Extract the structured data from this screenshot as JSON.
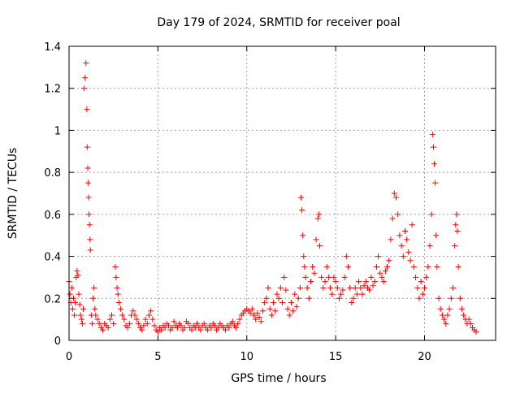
{
  "chart_data": {
    "type": "scatter",
    "title": "Day 179 of 2024, SRMTID for receiver poal",
    "xlabel": "GPS time / hours",
    "ylabel": "SRMTID / TECUs",
    "xlim": [
      0,
      24
    ],
    "ylim": [
      0,
      1.4
    ],
    "xticks": [
      0,
      5,
      10,
      15,
      20
    ],
    "xtick_labels": [
      "0",
      "5",
      "10",
      "15",
      "20"
    ],
    "yticks": [
      0,
      0.2,
      0.4,
      0.6,
      0.8,
      1.0,
      1.2,
      1.4
    ],
    "ytick_labels": [
      "0",
      "0.2",
      "0.4",
      "0.6",
      "0.8",
      "1",
      "1.2",
      "1.4"
    ],
    "grid": true,
    "marker": "+",
    "color": "#ff0000",
    "series": [
      {
        "name": "SRMTID",
        "points": [
          [
            0.0,
            0.28
          ],
          [
            0.05,
            0.22
          ],
          [
            0.1,
            0.18
          ],
          [
            0.15,
            0.25
          ],
          [
            0.2,
            0.15
          ],
          [
            0.25,
            0.2
          ],
          [
            0.3,
            0.12
          ],
          [
            0.35,
            0.18
          ],
          [
            0.4,
            0.3
          ],
          [
            0.45,
            0.33
          ],
          [
            0.5,
            0.31
          ],
          [
            0.55,
            0.22
          ],
          [
            0.6,
            0.17
          ],
          [
            0.65,
            0.12
          ],
          [
            0.7,
            0.1
          ],
          [
            0.75,
            0.08
          ],
          [
            0.8,
            0.15
          ],
          [
            0.85,
            1.2
          ],
          [
            0.9,
            1.25
          ],
          [
            0.95,
            1.32
          ],
          [
            1.0,
            1.1
          ],
          [
            1.02,
            0.92
          ],
          [
            1.05,
            0.82
          ],
          [
            1.07,
            0.75
          ],
          [
            1.1,
            0.68
          ],
          [
            1.12,
            0.6
          ],
          [
            1.15,
            0.55
          ],
          [
            1.18,
            0.48
          ],
          [
            1.2,
            0.43
          ],
          [
            1.25,
            0.12
          ],
          [
            1.3,
            0.08
          ],
          [
            1.35,
            0.2
          ],
          [
            1.4,
            0.25
          ],
          [
            1.45,
            0.15
          ],
          [
            1.5,
            0.12
          ],
          [
            1.6,
            0.1
          ],
          [
            1.7,
            0.08
          ],
          [
            1.8,
            0.06
          ],
          [
            1.9,
            0.05
          ],
          [
            2.0,
            0.08
          ],
          [
            2.1,
            0.07
          ],
          [
            2.2,
            0.06
          ],
          [
            2.3,
            0.1
          ],
          [
            2.4,
            0.12
          ],
          [
            2.5,
            0.08
          ],
          [
            2.6,
            0.35
          ],
          [
            2.65,
            0.3
          ],
          [
            2.7,
            0.25
          ],
          [
            2.75,
            0.22
          ],
          [
            2.8,
            0.18
          ],
          [
            2.9,
            0.15
          ],
          [
            3.0,
            0.12
          ],
          [
            3.1,
            0.1
          ],
          [
            3.2,
            0.07
          ],
          [
            3.3,
            0.06
          ],
          [
            3.4,
            0.08
          ],
          [
            3.5,
            0.12
          ],
          [
            3.6,
            0.14
          ],
          [
            3.7,
            0.12
          ],
          [
            3.8,
            0.1
          ],
          [
            3.9,
            0.08
          ],
          [
            4.0,
            0.06
          ],
          [
            4.1,
            0.05
          ],
          [
            4.2,
            0.07
          ],
          [
            4.3,
            0.1
          ],
          [
            4.4,
            0.08
          ],
          [
            4.5,
            0.12
          ],
          [
            4.6,
            0.14
          ],
          [
            4.7,
            0.1
          ],
          [
            4.8,
            0.07
          ],
          [
            4.9,
            0.05
          ],
          [
            5.0,
            0.04
          ],
          [
            5.1,
            0.06
          ],
          [
            5.2,
            0.05
          ],
          [
            5.3,
            0.07
          ],
          [
            5.4,
            0.06
          ],
          [
            5.5,
            0.08
          ],
          [
            5.6,
            0.07
          ],
          [
            5.7,
            0.05
          ],
          [
            5.8,
            0.06
          ],
          [
            5.9,
            0.09
          ],
          [
            6.0,
            0.07
          ],
          [
            6.1,
            0.06
          ],
          [
            6.2,
            0.08
          ],
          [
            6.3,
            0.07
          ],
          [
            6.4,
            0.05
          ],
          [
            6.5,
            0.06
          ],
          [
            6.6,
            0.09
          ],
          [
            6.7,
            0.08
          ],
          [
            6.8,
            0.06
          ],
          [
            6.9,
            0.05
          ],
          [
            7.0,
            0.07
          ],
          [
            7.1,
            0.06
          ],
          [
            7.2,
            0.08
          ],
          [
            7.3,
            0.06
          ],
          [
            7.4,
            0.05
          ],
          [
            7.5,
            0.07
          ],
          [
            7.6,
            0.08
          ],
          [
            7.7,
            0.06
          ],
          [
            7.8,
            0.05
          ],
          [
            7.9,
            0.07
          ],
          [
            8.0,
            0.06
          ],
          [
            8.1,
            0.08
          ],
          [
            8.2,
            0.07
          ],
          [
            8.3,
            0.05
          ],
          [
            8.4,
            0.06
          ],
          [
            8.5,
            0.08
          ],
          [
            8.6,
            0.07
          ],
          [
            8.7,
            0.06
          ],
          [
            8.8,
            0.05
          ],
          [
            8.9,
            0.07
          ],
          [
            9.0,
            0.06
          ],
          [
            9.1,
            0.08
          ],
          [
            9.2,
            0.09
          ],
          [
            9.3,
            0.07
          ],
          [
            9.4,
            0.06
          ],
          [
            9.5,
            0.08
          ],
          [
            9.6,
            0.1
          ],
          [
            9.7,
            0.12
          ],
          [
            9.8,
            0.13
          ],
          [
            9.9,
            0.14
          ],
          [
            10.0,
            0.15
          ],
          [
            10.1,
            0.14
          ],
          [
            10.2,
            0.13
          ],
          [
            10.3,
            0.15
          ],
          [
            10.4,
            0.12
          ],
          [
            10.5,
            0.1
          ],
          [
            10.6,
            0.13
          ],
          [
            10.7,
            0.11
          ],
          [
            10.8,
            0.09
          ],
          [
            10.9,
            0.14
          ],
          [
            11.0,
            0.18
          ],
          [
            11.1,
            0.2
          ],
          [
            11.2,
            0.25
          ],
          [
            11.3,
            0.15
          ],
          [
            11.4,
            0.12
          ],
          [
            11.5,
            0.18
          ],
          [
            11.6,
            0.14
          ],
          [
            11.7,
            0.22
          ],
          [
            11.8,
            0.2
          ],
          [
            11.9,
            0.25
          ],
          [
            12.0,
            0.18
          ],
          [
            12.1,
            0.3
          ],
          [
            12.2,
            0.24
          ],
          [
            12.3,
            0.15
          ],
          [
            12.4,
            0.12
          ],
          [
            12.5,
            0.18
          ],
          [
            12.6,
            0.14
          ],
          [
            12.7,
            0.22
          ],
          [
            12.8,
            0.16
          ],
          [
            12.9,
            0.2
          ],
          [
            13.0,
            0.25
          ],
          [
            13.05,
            0.68
          ],
          [
            13.1,
            0.62
          ],
          [
            13.15,
            0.5
          ],
          [
            13.2,
            0.4
          ],
          [
            13.25,
            0.35
          ],
          [
            13.3,
            0.3
          ],
          [
            13.4,
            0.25
          ],
          [
            13.5,
            0.2
          ],
          [
            13.6,
            0.28
          ],
          [
            13.7,
            0.35
          ],
          [
            13.8,
            0.32
          ],
          [
            13.9,
            0.48
          ],
          [
            14.0,
            0.58
          ],
          [
            14.05,
            0.6
          ],
          [
            14.1,
            0.45
          ],
          [
            14.2,
            0.3
          ],
          [
            14.3,
            0.25
          ],
          [
            14.4,
            0.28
          ],
          [
            14.5,
            0.35
          ],
          [
            14.6,
            0.3
          ],
          [
            14.7,
            0.25
          ],
          [
            14.8,
            0.22
          ],
          [
            14.9,
            0.3
          ],
          [
            15.0,
            0.28
          ],
          [
            15.1,
            0.25
          ],
          [
            15.2,
            0.2
          ],
          [
            15.3,
            0.22
          ],
          [
            15.4,
            0.24
          ],
          [
            15.5,
            0.3
          ],
          [
            15.6,
            0.4
          ],
          [
            15.7,
            0.35
          ],
          [
            15.8,
            0.25
          ],
          [
            15.9,
            0.18
          ],
          [
            16.0,
            0.2
          ],
          [
            16.1,
            0.25
          ],
          [
            16.2,
            0.22
          ],
          [
            16.3,
            0.28
          ],
          [
            16.4,
            0.25
          ],
          [
            16.5,
            0.22
          ],
          [
            16.6,
            0.26
          ],
          [
            16.7,
            0.28
          ],
          [
            16.8,
            0.25
          ],
          [
            16.9,
            0.24
          ],
          [
            17.0,
            0.3
          ],
          [
            17.1,
            0.26
          ],
          [
            17.2,
            0.28
          ],
          [
            17.3,
            0.35
          ],
          [
            17.4,
            0.4
          ],
          [
            17.5,
            0.32
          ],
          [
            17.6,
            0.3
          ],
          [
            17.7,
            0.28
          ],
          [
            17.8,
            0.33
          ],
          [
            17.9,
            0.35
          ],
          [
            18.0,
            0.38
          ],
          [
            18.1,
            0.48
          ],
          [
            18.2,
            0.58
          ],
          [
            18.3,
            0.7
          ],
          [
            18.4,
            0.68
          ],
          [
            18.5,
            0.6
          ],
          [
            18.6,
            0.5
          ],
          [
            18.7,
            0.45
          ],
          [
            18.8,
            0.4
          ],
          [
            18.9,
            0.52
          ],
          [
            19.0,
            0.48
          ],
          [
            19.1,
            0.42
          ],
          [
            19.2,
            0.38
          ],
          [
            19.3,
            0.55
          ],
          [
            19.4,
            0.35
          ],
          [
            19.5,
            0.3
          ],
          [
            19.6,
            0.25
          ],
          [
            19.7,
            0.2
          ],
          [
            19.8,
            0.28
          ],
          [
            19.9,
            0.22
          ],
          [
            20.0,
            0.25
          ],
          [
            20.1,
            0.3
          ],
          [
            20.2,
            0.35
          ],
          [
            20.3,
            0.45
          ],
          [
            20.4,
            0.6
          ],
          [
            20.45,
            0.98
          ],
          [
            20.5,
            0.92
          ],
          [
            20.55,
            0.84
          ],
          [
            20.6,
            0.75
          ],
          [
            20.65,
            0.5
          ],
          [
            20.7,
            0.35
          ],
          [
            20.8,
            0.2
          ],
          [
            20.9,
            0.15
          ],
          [
            21.0,
            0.12
          ],
          [
            21.1,
            0.1
          ],
          [
            21.2,
            0.08
          ],
          [
            21.3,
            0.12
          ],
          [
            21.4,
            0.15
          ],
          [
            21.5,
            0.2
          ],
          [
            21.6,
            0.25
          ],
          [
            21.7,
            0.45
          ],
          [
            21.75,
            0.55
          ],
          [
            21.8,
            0.6
          ],
          [
            21.85,
            0.52
          ],
          [
            21.9,
            0.35
          ],
          [
            22.0,
            0.2
          ],
          [
            22.1,
            0.15
          ],
          [
            22.2,
            0.12
          ],
          [
            22.3,
            0.1
          ],
          [
            22.4,
            0.08
          ],
          [
            22.5,
            0.1
          ],
          [
            22.6,
            0.08
          ],
          [
            22.7,
            0.06
          ],
          [
            22.8,
            0.05
          ],
          [
            22.9,
            0.04
          ]
        ]
      }
    ]
  }
}
